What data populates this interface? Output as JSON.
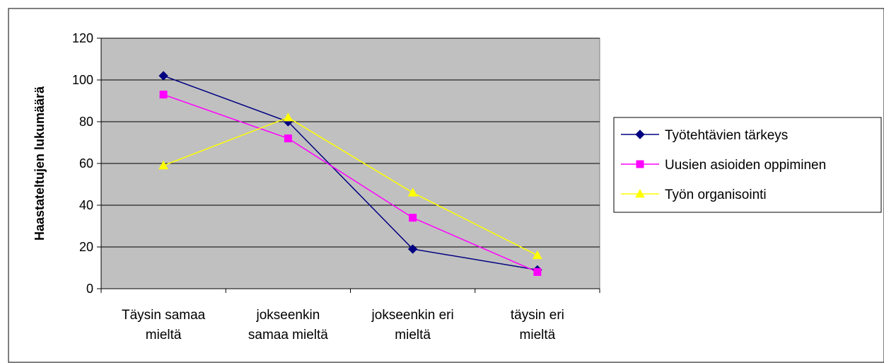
{
  "chart_data": {
    "type": "line",
    "ylabel": "Haastateltujen lukumäärä",
    "ylim": [
      0,
      120
    ],
    "yticks": [
      0,
      20,
      40,
      60,
      80,
      100,
      120
    ],
    "categories": [
      [
        "Täysin samaa",
        "mieltä"
      ],
      [
        "jokseenkin",
        "samaa mieltä"
      ],
      [
        "jokseenkin eri",
        "mieltä"
      ],
      [
        "täysin eri",
        "mieltä"
      ]
    ],
    "grid": "horizontal",
    "legend_position": "right",
    "plot_background": "#c0c0c0",
    "series": [
      {
        "name": "Työtehtävien tärkeys",
        "values": [
          102,
          80,
          19,
          9
        ],
        "color": "#000080",
        "marker": "diamond"
      },
      {
        "name": "Uusien asioiden oppiminen",
        "values": [
          93,
          72,
          34,
          8
        ],
        "color": "#ff00ff",
        "marker": "square"
      },
      {
        "name": "Työn organisointi",
        "values": [
          59,
          82,
          46,
          16
        ],
        "color": "#ffff00",
        "marker": "triangle"
      }
    ]
  }
}
